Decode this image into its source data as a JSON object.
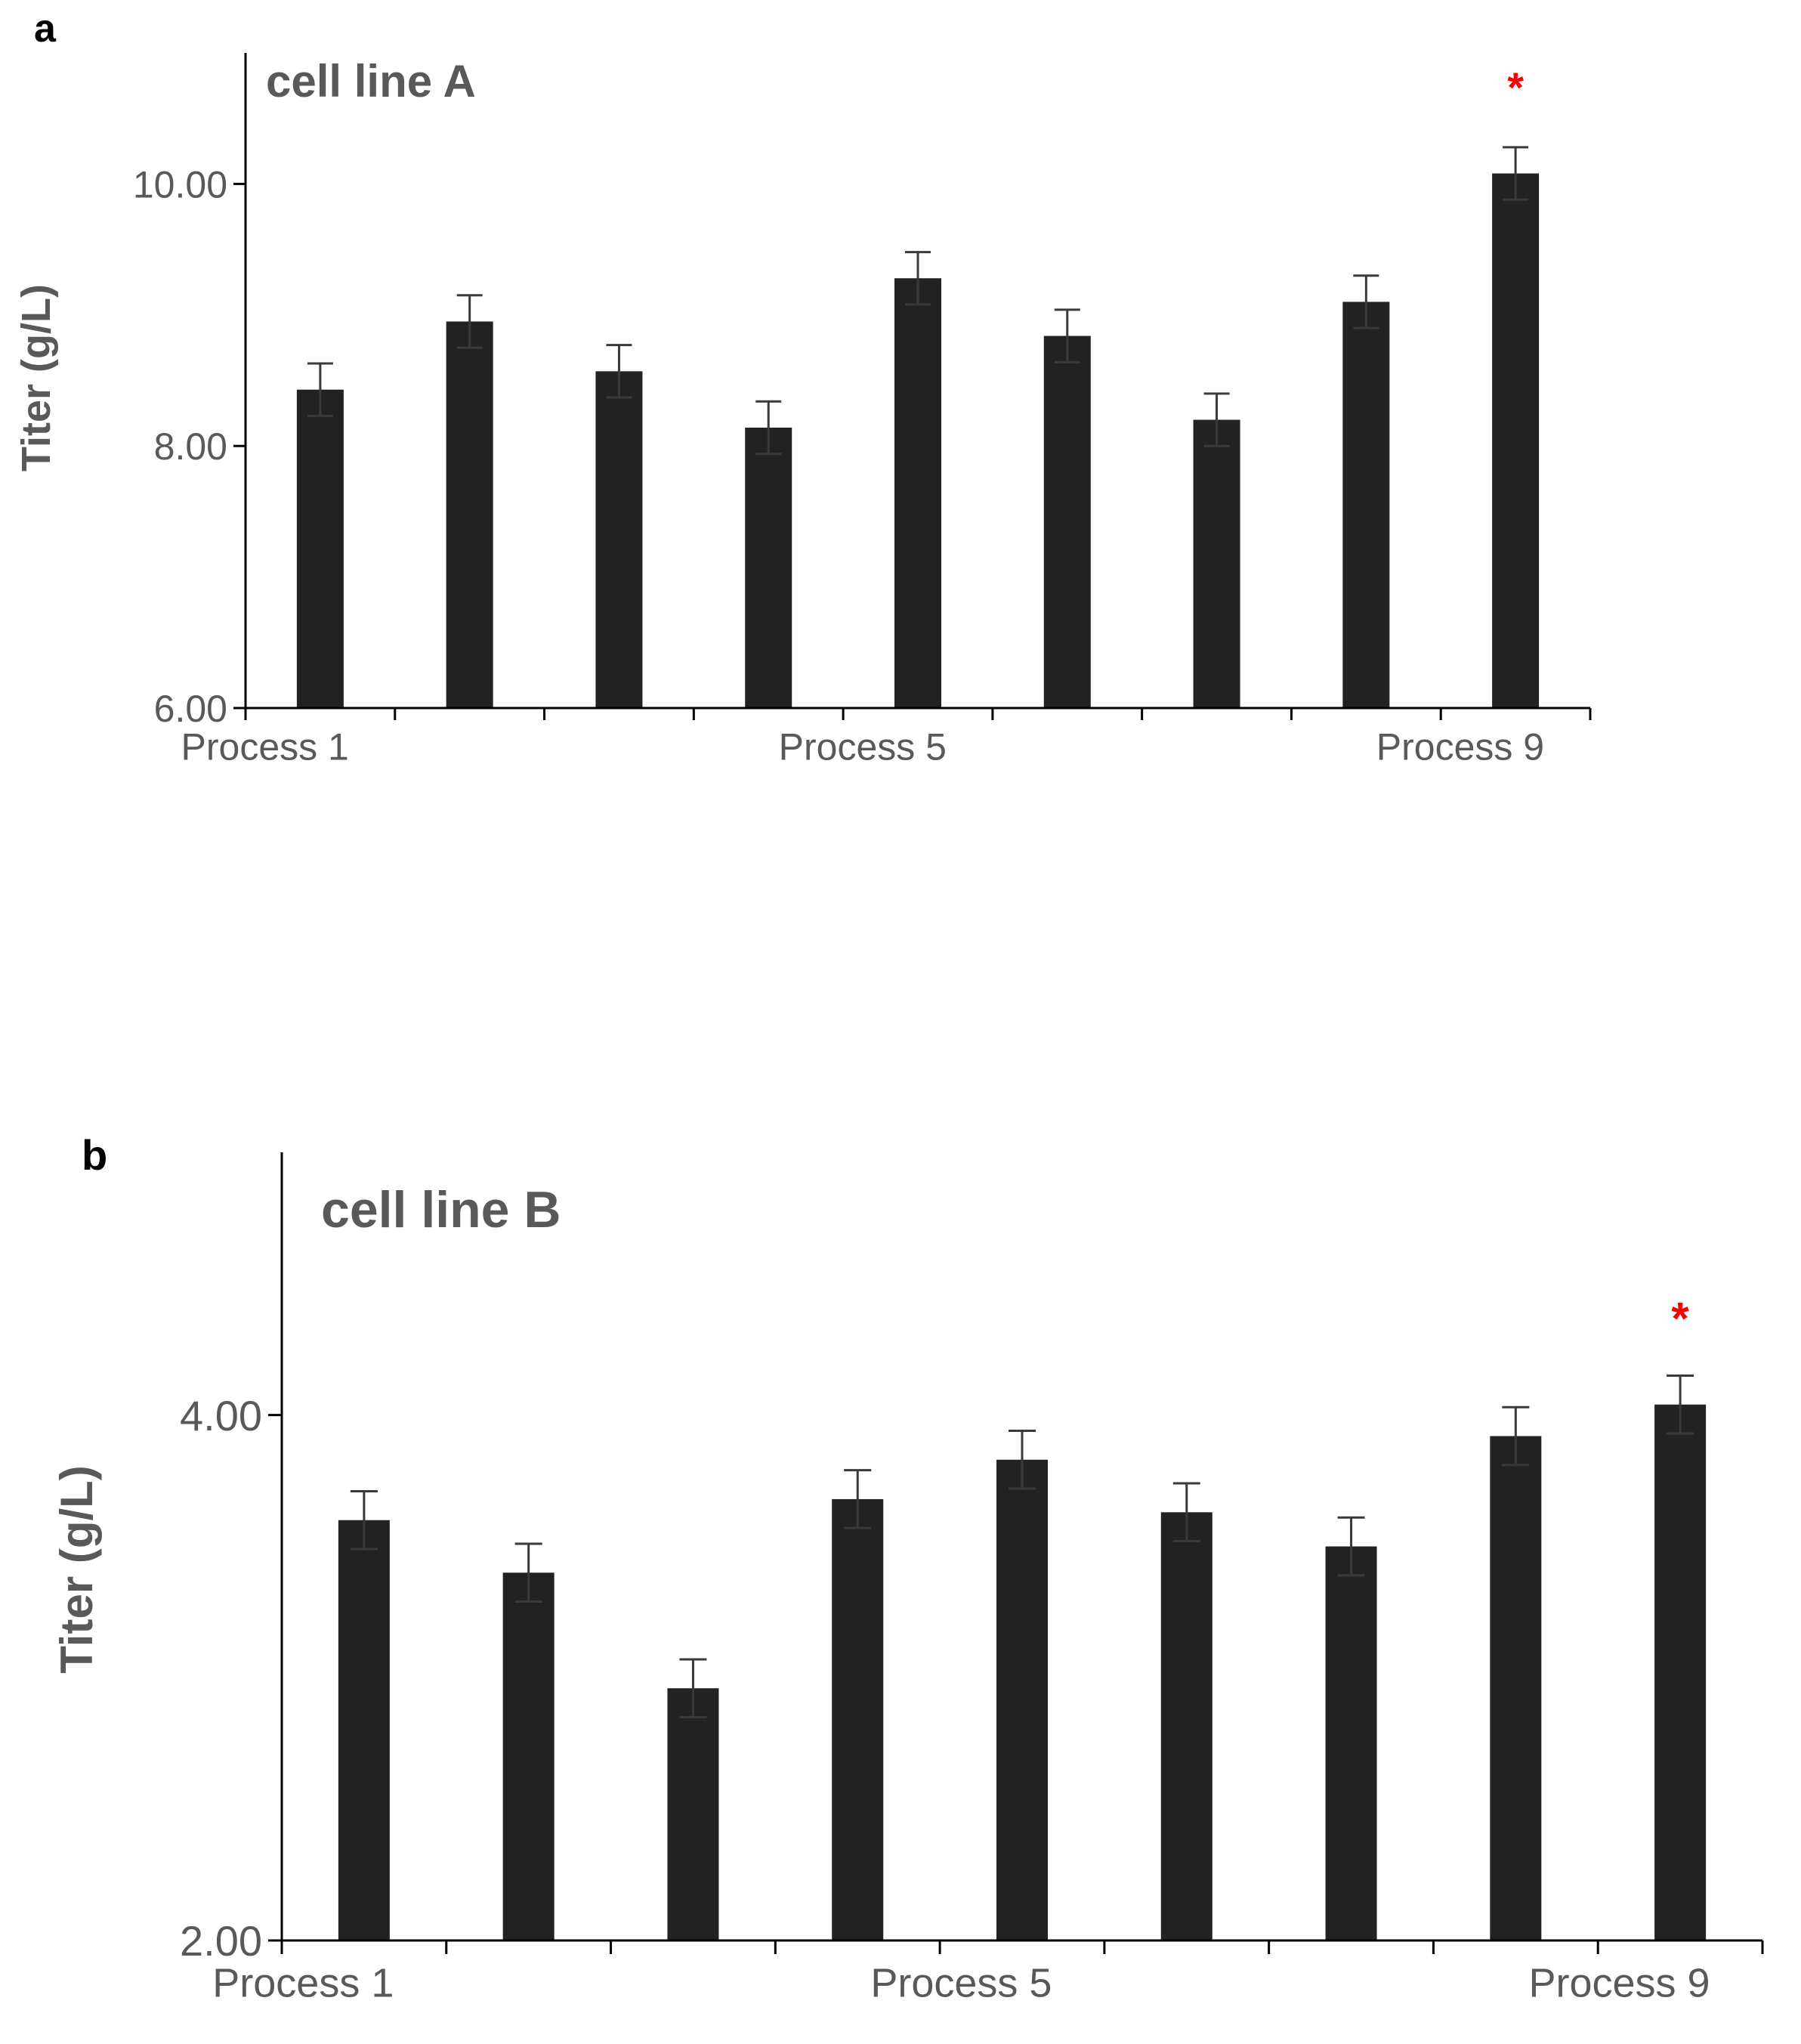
{
  "colors": {
    "bar": "#222222",
    "axis": "#000000",
    "text": "#595959",
    "error": "#3a3a3a",
    "significance": "#ff0000"
  },
  "chart_data": [
    {
      "panel": "a",
      "type": "bar",
      "title": "cell line A",
      "xlabel": "",
      "ylabel": "Titer (g/L)",
      "ylim": [
        6.0,
        11.0
      ],
      "yticks": [
        6.0,
        8.0,
        10.0
      ],
      "ytick_labels": [
        "6.00",
        "8.00",
        "10.00"
      ],
      "categories": [
        "Process 1",
        "",
        "",
        "",
        "Process 5",
        "",
        "",
        "",
        "Process 9"
      ],
      "values": [
        8.43,
        8.95,
        8.57,
        8.14,
        9.28,
        8.84,
        8.2,
        9.1,
        10.08
      ],
      "errors": [
        0.2,
        0.2,
        0.2,
        0.2,
        0.2,
        0.2,
        0.2,
        0.2,
        0.2
      ],
      "significance": {
        "index": 8,
        "marker": "*"
      }
    },
    {
      "panel": "b",
      "type": "bar",
      "title": "cell line B",
      "xlabel": "",
      "ylabel": "Titer (g/L)",
      "ylim": [
        2.0,
        5.0
      ],
      "yticks": [
        2.0,
        4.0
      ],
      "ytick_labels": [
        "2.00",
        "4.00"
      ],
      "categories": [
        "Process 1",
        "",
        "",
        "",
        "Process 5",
        "",
        "",
        "",
        "Process 9"
      ],
      "values": [
        3.6,
        3.4,
        2.96,
        3.68,
        3.83,
        3.63,
        3.5,
        3.92,
        4.04
      ],
      "errors": [
        0.11,
        0.11,
        0.11,
        0.11,
        0.11,
        0.11,
        0.11,
        0.11,
        0.11
      ],
      "significance": {
        "index": 8,
        "marker": "*"
      }
    }
  ]
}
